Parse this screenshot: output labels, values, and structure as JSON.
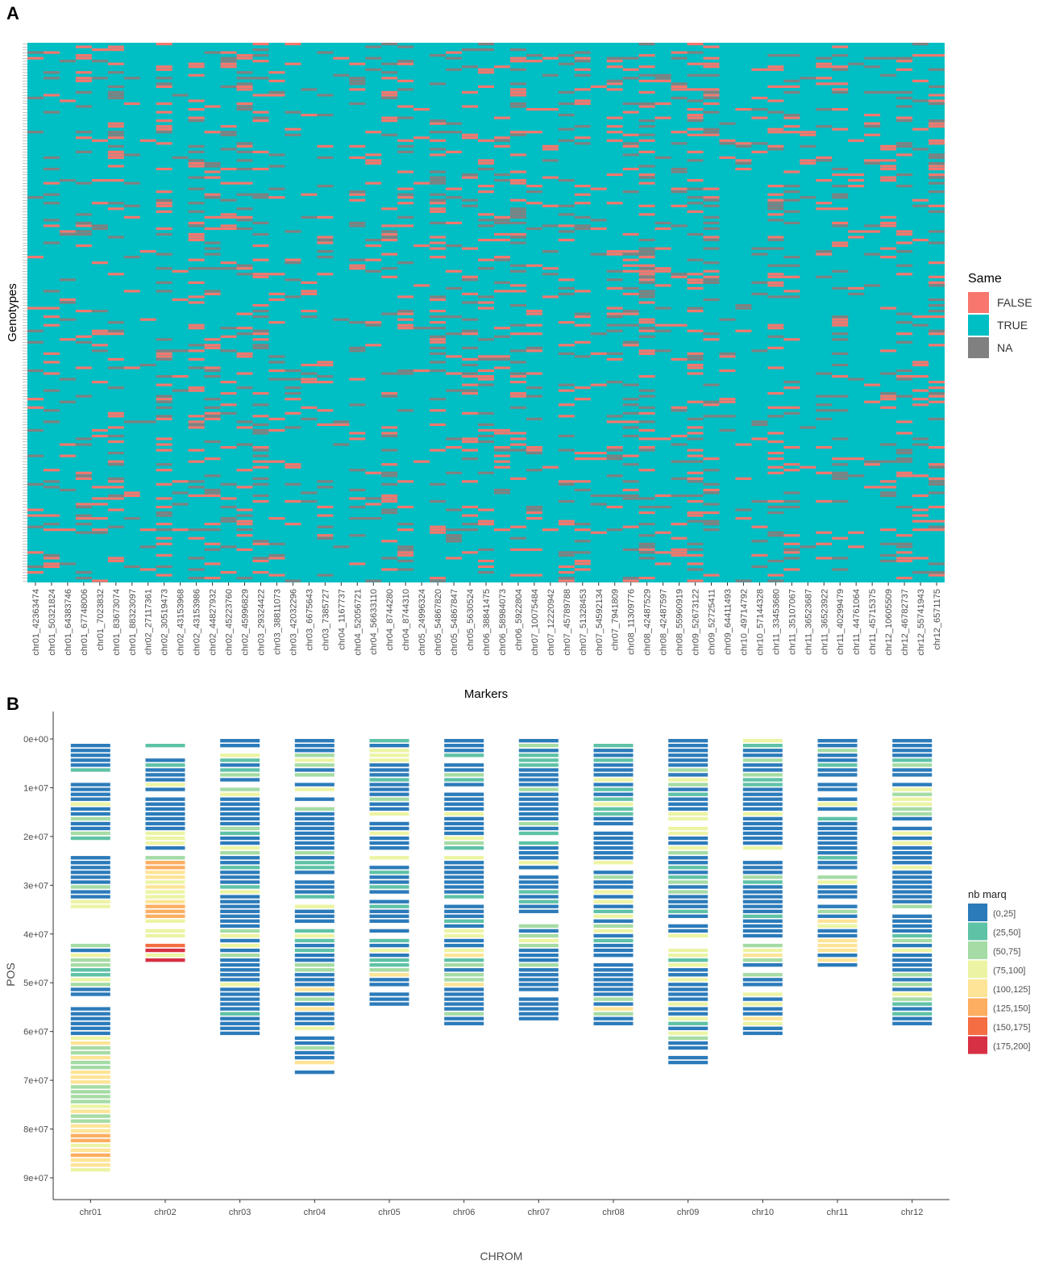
{
  "panel_a_letter": "A",
  "panel_b_letter": "B",
  "chart_data": [
    {
      "type": "heatmap",
      "title": "",
      "xlabel": "Markers",
      "ylabel": "Genotypes",
      "markers": [
        "chr01_42363474",
        "chr01_50321824",
        "chr01_64383746",
        "chr01_67748006",
        "chr01_7023832",
        "chr01_83673074",
        "chr01_88323097",
        "chr02_27117361",
        "chr02_30519473",
        "chr02_43153968",
        "chr02_43153986",
        "chr02_44827932",
        "chr02_45223760",
        "chr02_45996829",
        "chr03_29324422",
        "chr03_38811073",
        "chr03_42032296",
        "chr03_6675643",
        "chr03_7385727",
        "chr04_1167737",
        "chr04_52056721",
        "chr04_56633110",
        "chr04_8744280",
        "chr04_8744310",
        "chr05_24996324",
        "chr05_54867820",
        "chr05_54867847",
        "chr05_5630524",
        "chr06_38841475",
        "chr06_58984073",
        "chr06_5922804",
        "chr07_10075484",
        "chr07_12220942",
        "chr07_45789788",
        "chr07_51328453",
        "chr07_54592134",
        "chr07_7941809",
        "chr08_11309776",
        "chr08_42487529",
        "chr08_42487597",
        "chr08_55960919",
        "chr09_52673122",
        "chr09_52725411",
        "chr09_64411493",
        "chr10_49714792",
        "chr10_57144328",
        "chr11_33453680",
        "chr11_35107067",
        "chr11_36523687",
        "chr11_36523922",
        "chr11_40299479",
        "chr11_44761064",
        "chr11_45715375",
        "chr12_10605509",
        "chr12_46782737",
        "chr12_55741943",
        "chr12_6571175"
      ],
      "n_genotypes": 190,
      "legend": {
        "title": "Same",
        "entries": [
          {
            "label": "FALSE",
            "color": "#f8766d"
          },
          {
            "label": "TRUE",
            "color": "#00bfc4"
          },
          {
            "label": "NA",
            "color": "#808080"
          }
        ]
      }
    },
    {
      "type": "heatmap",
      "title": "",
      "xlabel": "CHROM",
      "ylabel": "POS",
      "categories": [
        "chr01",
        "chr02",
        "chr03",
        "chr04",
        "chr05",
        "chr06",
        "chr07",
        "chr08",
        "chr09",
        "chr10",
        "chr11",
        "chr12"
      ],
      "y_ticks": [
        "0e+00",
        "1e+07",
        "2e+07",
        "3e+07",
        "4e+07",
        "5e+07",
        "6e+07",
        "7e+07",
        "8e+07",
        "9e+07"
      ],
      "ylim": [
        0,
        92000000
      ],
      "chrom_ranges": [
        [
          1000000,
          89000000
        ],
        [
          1000000,
          46000000
        ],
        [
          0,
          61000000
        ],
        [
          0,
          69000000
        ],
        [
          0,
          55000000
        ],
        [
          0,
          59000000
        ],
        [
          0,
          58000000
        ],
        [
          1000000,
          59000000
        ],
        [
          0,
          68000000
        ],
        [
          0,
          61000000
        ],
        [
          0,
          47000000
        ],
        [
          0,
          59000000
        ]
      ],
      "gaps": [
        [
          [
            35000000,
            41500000
          ]
        ],
        [
          [
            1500000,
            3500000
          ]
        ],
        [],
        [],
        [],
        [],
        [],
        [],
        [],
        [],
        [],
        []
      ],
      "legend": {
        "title": "nb marq",
        "entries": [
          {
            "label": "(0,25]",
            "color": "#2b7bba"
          },
          {
            "label": "(25,50]",
            "color": "#5ec2a6"
          },
          {
            "label": "(50,75]",
            "color": "#a5dba4"
          },
          {
            "label": "(75,100]",
            "color": "#ecf4a4"
          },
          {
            "label": "(100,125]",
            "color": "#fde496"
          },
          {
            "label": "(125,150]",
            "color": "#fdae61"
          },
          {
            "label": "(150,175]",
            "color": "#f46d43"
          },
          {
            "label": "(175,200]",
            "color": "#d73045"
          }
        ]
      }
    }
  ]
}
